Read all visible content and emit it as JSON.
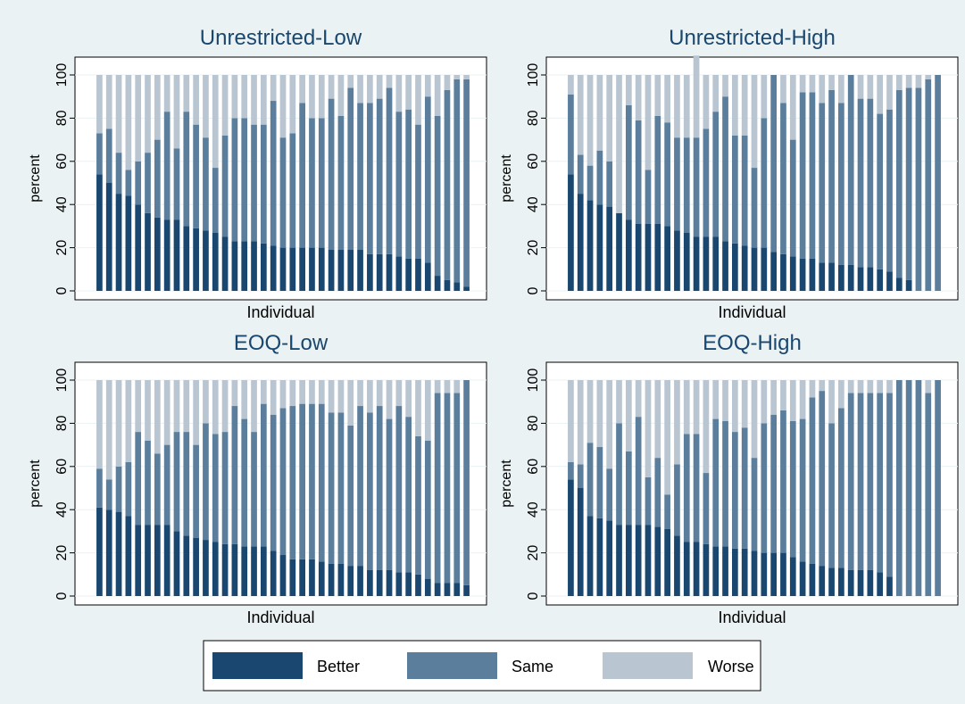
{
  "figure": {
    "legend_position": "bottom",
    "legend": [
      {
        "name": "Better",
        "color": "#1a476f"
      },
      {
        "name": "Same",
        "color": "#5b7e9c"
      },
      {
        "name": "Worse",
        "color": "#b9c6d2"
      }
    ]
  },
  "colors": {
    "background": "#eaf2f3",
    "plot_background": "#ffffff",
    "better": "#1a476f",
    "same": "#5b7e9c",
    "worse": "#b9c6d2"
  },
  "chart_data": [
    {
      "type": "bar",
      "stacked": true,
      "title": "Unrestricted-Low",
      "xlabel": "Individual",
      "ylabel": "percent",
      "ylim": [
        0,
        100
      ],
      "yticks": [
        0,
        20,
        40,
        60,
        80,
        100
      ],
      "grid": true,
      "series": [
        {
          "name": "Better",
          "values": [
            54,
            50,
            45,
            44,
            40,
            36,
            34,
            33,
            33,
            30,
            29,
            28,
            27,
            25,
            23,
            23,
            23,
            22,
            21,
            20,
            20,
            20,
            20,
            20,
            19,
            19,
            19,
            19,
            17,
            17,
            17,
            16,
            15,
            15,
            13,
            7,
            5,
            4,
            2
          ]
        },
        {
          "name": "Same",
          "values": [
            19,
            25,
            19,
            12,
            20,
            28,
            36,
            50,
            33,
            53,
            48,
            43,
            30,
            47,
            57,
            57,
            54,
            55,
            67,
            51,
            53,
            67,
            60,
            60,
            70,
            62,
            75,
            68,
            70,
            72,
            77,
            67,
            69,
            62,
            77,
            74,
            88,
            94,
            96
          ]
        },
        {
          "name": "Worse",
          "values": [
            27,
            25,
            36,
            44,
            40,
            36,
            30,
            17,
            34,
            17,
            23,
            29,
            43,
            28,
            20,
            20,
            23,
            23,
            12,
            29,
            27,
            13,
            20,
            20,
            11,
            19,
            6,
            13,
            13,
            11,
            6,
            17,
            16,
            23,
            10,
            19,
            7,
            2,
            2
          ]
        }
      ]
    },
    {
      "type": "bar",
      "stacked": true,
      "title": "Unrestricted-High",
      "xlabel": "Individual",
      "ylabel": "percent",
      "ylim": [
        0,
        100
      ],
      "yticks": [
        0,
        20,
        40,
        60,
        80,
        100
      ],
      "grid": true,
      "series": [
        {
          "name": "Better",
          "values": [
            54,
            45,
            42,
            40,
            39,
            36,
            33,
            31,
            31,
            31,
            30,
            28,
            27,
            25,
            25,
            25,
            23,
            22,
            21,
            20,
            20,
            18,
            17,
            16,
            15,
            15,
            13,
            13,
            12,
            12,
            11,
            11,
            10,
            9,
            6,
            5,
            0,
            0,
            0
          ]
        },
        {
          "name": "Same",
          "values": [
            37,
            18,
            16,
            25,
            21,
            0,
            53,
            48,
            25,
            50,
            48,
            43,
            44,
            46,
            50,
            58,
            67,
            50,
            51,
            37,
            60,
            82,
            70,
            54,
            77,
            77,
            74,
            80,
            75,
            88,
            78,
            78,
            72,
            75,
            87,
            89,
            94,
            98,
            100
          ]
        },
        {
          "name": "Worse",
          "values": [
            9,
            37,
            42,
            35,
            40,
            64,
            14,
            21,
            44,
            19,
            22,
            29,
            29,
            38,
            25,
            17,
            10,
            28,
            28,
            43,
            20,
            0,
            13,
            30,
            8,
            8,
            13,
            7,
            13,
            0,
            11,
            11,
            18,
            16,
            7,
            6,
            6,
            2,
            0
          ]
        }
      ]
    },
    {
      "type": "bar",
      "stacked": true,
      "title": "EOQ-Low",
      "xlabel": "Individual",
      "ylabel": "percent",
      "ylim": [
        0,
        100
      ],
      "yticks": [
        0,
        20,
        40,
        60,
        80,
        100
      ],
      "grid": true,
      "series": [
        {
          "name": "Better",
          "values": [
            41,
            40,
            39,
            37,
            33,
            33,
            33,
            33,
            30,
            28,
            27,
            26,
            25,
            24,
            24,
            23,
            23,
            23,
            21,
            19,
            17,
            17,
            17,
            16,
            15,
            15,
            14,
            14,
            12,
            12,
            12,
            11,
            11,
            10,
            8,
            6,
            6,
            6,
            5
          ]
        },
        {
          "name": "Same",
          "values": [
            18,
            14,
            21,
            25,
            43,
            39,
            33,
            37,
            46,
            48,
            43,
            54,
            50,
            52,
            64,
            59,
            53,
            66,
            63,
            68,
            71,
            72,
            72,
            73,
            70,
            70,
            65,
            74,
            73,
            76,
            70,
            77,
            72,
            64,
            64,
            88,
            88,
            88,
            95
          ]
        },
        {
          "name": "Worse",
          "values": [
            41,
            46,
            40,
            38,
            24,
            28,
            34,
            30,
            24,
            24,
            30,
            20,
            25,
            24,
            12,
            18,
            24,
            11,
            16,
            13,
            12,
            11,
            11,
            11,
            15,
            15,
            21,
            12,
            15,
            12,
            18,
            12,
            17,
            26,
            28,
            6,
            6,
            6,
            0
          ]
        }
      ]
    },
    {
      "type": "bar",
      "stacked": true,
      "title": "EOQ-High",
      "xlabel": "Individual",
      "ylabel": "percent",
      "ylim": [
        0,
        100
      ],
      "yticks": [
        0,
        20,
        40,
        60,
        80,
        100
      ],
      "grid": true,
      "series": [
        {
          "name": "Better",
          "values": [
            54,
            50,
            37,
            36,
            35,
            33,
            33,
            33,
            33,
            32,
            31,
            28,
            25,
            25,
            24,
            23,
            23,
            22,
            22,
            21,
            20,
            20,
            20,
            18,
            16,
            15,
            14,
            13,
            13,
            12,
            12,
            12,
            11,
            9,
            0,
            0,
            0,
            0,
            0
          ]
        },
        {
          "name": "Same",
          "values": [
            8,
            11,
            34,
            33,
            24,
            47,
            34,
            50,
            22,
            32,
            16,
            33,
            50,
            50,
            33,
            59,
            58,
            54,
            56,
            43,
            60,
            64,
            66,
            63,
            66,
            77,
            81,
            67,
            74,
            82,
            82,
            82,
            83,
            85,
            100,
            100,
            100,
            94,
            100
          ]
        },
        {
          "name": "Worse",
          "values": [
            38,
            39,
            29,
            31,
            41,
            20,
            33,
            17,
            45,
            36,
            53,
            39,
            25,
            25,
            43,
            18,
            19,
            24,
            22,
            36,
            20,
            16,
            14,
            19,
            18,
            8,
            5,
            20,
            13,
            6,
            6,
            6,
            6,
            6,
            0,
            0,
            0,
            6,
            0
          ]
        }
      ]
    }
  ]
}
